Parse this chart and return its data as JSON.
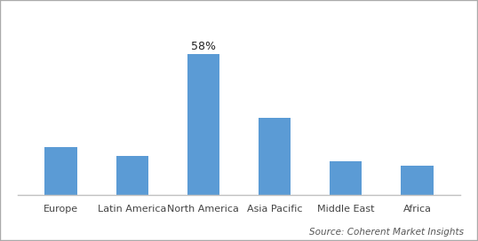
{
  "categories": [
    "Europe",
    "Latin America",
    "North America",
    "Asia Pacific",
    "Middle East",
    "Africa"
  ],
  "values": [
    20,
    16,
    58,
    32,
    14,
    12
  ],
  "bar_color": "#5b9bd5",
  "annotation_bar": "North America",
  "annotation_text": "58%",
  "annotation_fontsize": 9,
  "source_text": "Source: Coherent Market Insights",
  "source_fontsize": 7.5,
  "tick_fontsize": 8,
  "bar_width": 0.45,
  "ylim": [
    0,
    72
  ],
  "background_color": "#ffffff",
  "spine_color": "#c0c0c0",
  "border_color": "#aaaaaa",
  "label_color": "#444444"
}
